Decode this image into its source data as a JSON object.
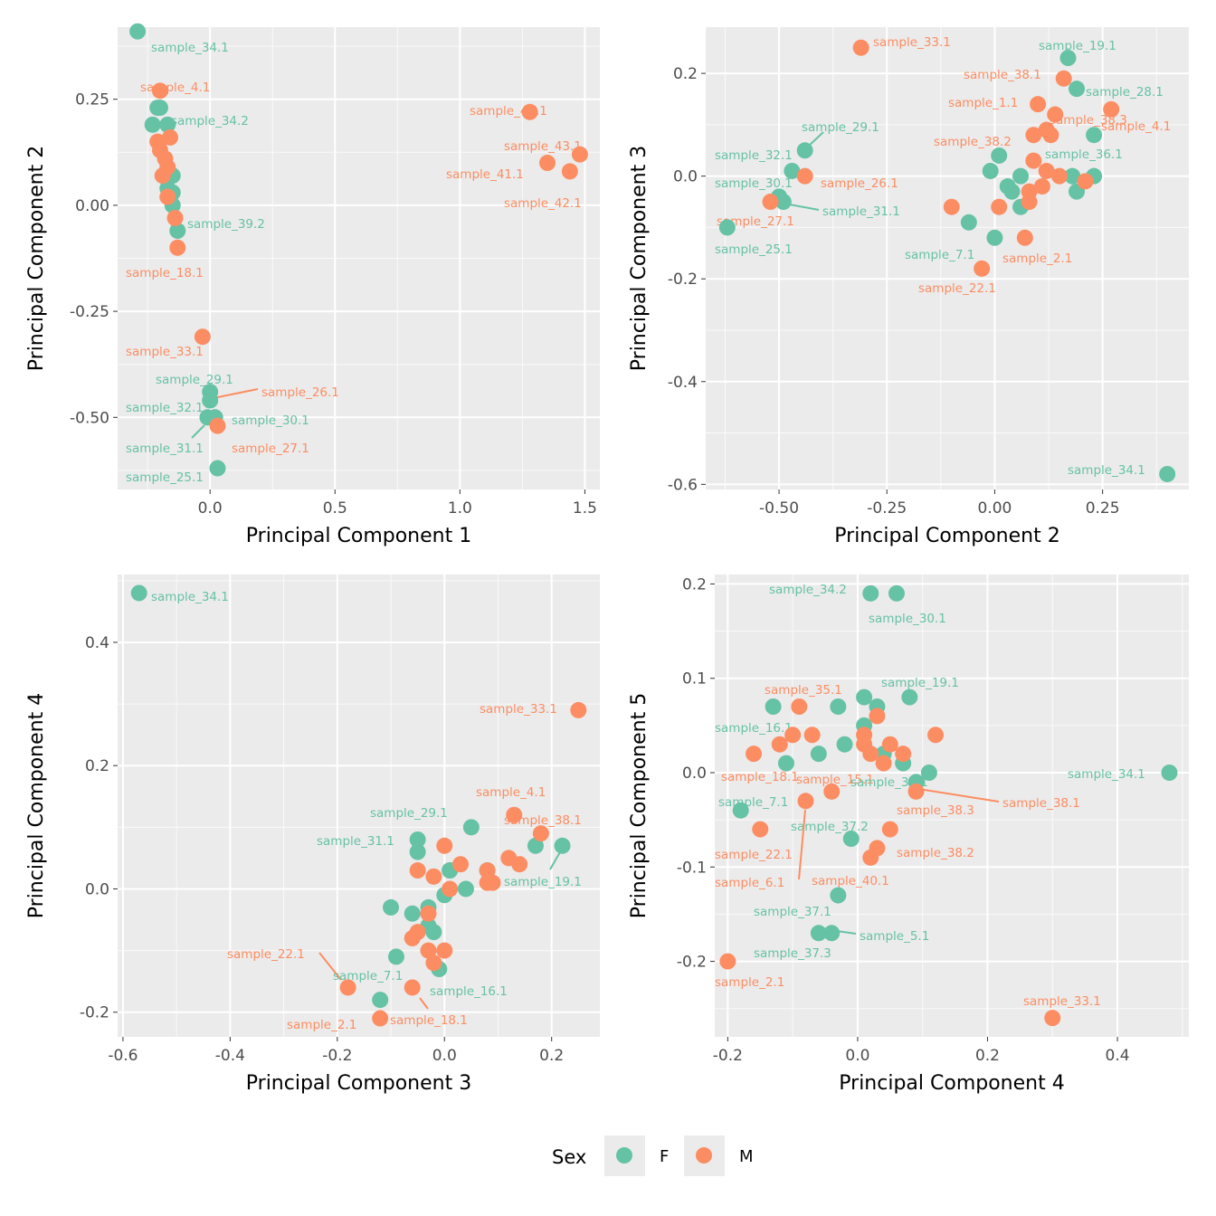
{
  "colors": {
    "F": "#66c2a5",
    "M": "#fc8d62",
    "panel_bg": "#ebebeb",
    "grid": "#ffffff"
  },
  "legend": {
    "title": "Sex",
    "position": "bottom",
    "items": [
      {
        "key": "F",
        "label": "F"
      },
      {
        "key": "M",
        "label": "M"
      }
    ]
  },
  "chart_data": [
    {
      "type": "scatter",
      "xlabel": "Principal Component 1",
      "ylabel": "Principal Component 2",
      "grid": true,
      "xlim": [
        -0.37,
        1.56
      ],
      "ylim": [
        -0.67,
        0.42
      ],
      "xticks": [
        "0.0",
        "0.5",
        "1.0",
        "1.5"
      ],
      "xtick_values": [
        0,
        0.5,
        1,
        1.5
      ],
      "yticks": [
        "-0.50",
        "-0.25",
        "0.00",
        "0.25"
      ],
      "ytick_values": [
        -0.5,
        -0.25,
        0,
        0.25
      ],
      "series": [
        {
          "name": "F",
          "points": [
            [
              -0.29,
              0.41
            ],
            [
              -0.21,
              0.23
            ],
            [
              -0.2,
              0.23
            ],
            [
              -0.23,
              0.19
            ],
            [
              -0.17,
              0.19
            ],
            [
              -0.15,
              0.07
            ],
            [
              -0.17,
              0.04
            ],
            [
              -0.15,
              0.03
            ],
            [
              -0.15,
              0.0
            ],
            [
              -0.13,
              -0.06
            ],
            [
              0.0,
              -0.44
            ],
            [
              0.0,
              -0.46
            ],
            [
              -0.01,
              -0.5
            ],
            [
              0.02,
              -0.5
            ],
            [
              0.03,
              -0.62
            ]
          ]
        },
        {
          "name": "M",
          "points": [
            [
              -0.2,
              0.27
            ],
            [
              -0.16,
              0.16
            ],
            [
              -0.21,
              0.15
            ],
            [
              -0.2,
              0.13
            ],
            [
              -0.18,
              0.11
            ],
            [
              -0.17,
              0.09
            ],
            [
              -0.19,
              0.07
            ],
            [
              -0.17,
              0.02
            ],
            [
              -0.14,
              -0.03
            ],
            [
              -0.13,
              -0.1
            ],
            [
              -0.03,
              -0.31
            ],
            [
              0.03,
              -0.52
            ],
            [
              1.28,
              0.22
            ],
            [
              1.35,
              0.1
            ],
            [
              1.44,
              0.08
            ],
            [
              1.48,
              0.12
            ]
          ]
        }
      ],
      "labels": [
        {
          "text": "sample_34.1",
          "sex": "F"
        },
        {
          "text": "sample_4.1",
          "sex": "M"
        },
        {
          "text": "sample_34.2",
          "sex": "F"
        },
        {
          "text": "sample_39.2",
          "sex": "F"
        },
        {
          "text": "sample_18.1",
          "sex": "M"
        },
        {
          "text": "sample_40.1",
          "sex": "M"
        },
        {
          "text": "sample_43.1",
          "sex": "M"
        },
        {
          "text": "sample_41.1",
          "sex": "M"
        },
        {
          "text": "sample_42.1",
          "sex": "M"
        },
        {
          "text": "sample_33.1",
          "sex": "M"
        },
        {
          "text": "sample_29.1",
          "sex": "F"
        },
        {
          "text": "sample_26.1",
          "sex": "M"
        },
        {
          "text": "sample_32.1",
          "sex": "F"
        },
        {
          "text": "sample_30.1",
          "sex": "F"
        },
        {
          "text": "sample_31.1",
          "sex": "F"
        },
        {
          "text": "sample_27.1",
          "sex": "M"
        },
        {
          "text": "sample_25.1",
          "sex": "F"
        }
      ]
    },
    {
      "type": "scatter",
      "xlabel": "Principal Component 2",
      "ylabel": "Principal Component 3",
      "grid": true,
      "xlim": [
        -0.67,
        0.45
      ],
      "ylim": [
        -0.61,
        0.29
      ],
      "xticks": [
        "-0.50",
        "-0.25",
        "0.00",
        "0.25"
      ],
      "xtick_values": [
        -0.5,
        -0.25,
        0,
        0.25
      ],
      "yticks": [
        "-0.6",
        "-0.4",
        "-0.2",
        "0.0",
        "0.2"
      ],
      "ytick_values": [
        -0.6,
        -0.4,
        -0.2,
        0,
        0.2
      ],
      "series": [
        {
          "name": "F",
          "points": [
            [
              0.17,
              0.23
            ],
            [
              0.19,
              0.17
            ],
            [
              0.23,
              0.08
            ],
            [
              0.01,
              0.04
            ],
            [
              -0.01,
              0.01
            ],
            [
              0.06,
              0.0
            ],
            [
              0.03,
              -0.02
            ],
            [
              0.04,
              -0.03
            ],
            [
              0.06,
              -0.06
            ],
            [
              0.18,
              0.0
            ],
            [
              0.23,
              0.0
            ],
            [
              0.19,
              -0.03
            ],
            [
              -0.06,
              -0.09
            ],
            [
              0.0,
              -0.12
            ],
            [
              -0.44,
              0.05
            ],
            [
              -0.47,
              0.01
            ],
            [
              -0.5,
              -0.04
            ],
            [
              -0.49,
              -0.05
            ],
            [
              -0.62,
              -0.1
            ],
            [
              0.4,
              -0.58
            ]
          ]
        },
        {
          "name": "M",
          "points": [
            [
              -0.31,
              0.25
            ],
            [
              0.16,
              0.19
            ],
            [
              0.1,
              0.14
            ],
            [
              0.14,
              0.12
            ],
            [
              0.27,
              0.13
            ],
            [
              0.09,
              0.08
            ],
            [
              0.12,
              0.09
            ],
            [
              0.13,
              0.08
            ],
            [
              0.09,
              0.03
            ],
            [
              0.12,
              0.01
            ],
            [
              0.15,
              0.0
            ],
            [
              0.21,
              -0.01
            ],
            [
              0.11,
              -0.02
            ],
            [
              0.08,
              -0.03
            ],
            [
              0.08,
              -0.05
            ],
            [
              -0.1,
              -0.06
            ],
            [
              0.01,
              -0.06
            ],
            [
              0.07,
              -0.12
            ],
            [
              -0.03,
              -0.18
            ],
            [
              -0.44,
              0.0
            ],
            [
              -0.52,
              -0.05
            ]
          ]
        }
      ],
      "labels": [
        {
          "text": "sample_33.1",
          "sex": "M"
        },
        {
          "text": "sample_19.1",
          "sex": "F"
        },
        {
          "text": "sample_38.1",
          "sex": "M"
        },
        {
          "text": "sample_28.1",
          "sex": "F"
        },
        {
          "text": "sample_1.1",
          "sex": "M"
        },
        {
          "text": "sample_38.3",
          "sex": "M"
        },
        {
          "text": "sample_4.1",
          "sex": "M"
        },
        {
          "text": "sample_38.2",
          "sex": "M"
        },
        {
          "text": "sample_36.1",
          "sex": "F"
        },
        {
          "text": "sample_29.1",
          "sex": "F"
        },
        {
          "text": "sample_32.1",
          "sex": "F"
        },
        {
          "text": "sample_26.1",
          "sex": "M"
        },
        {
          "text": "sample_30.1",
          "sex": "F"
        },
        {
          "text": "sample_31.1",
          "sex": "F"
        },
        {
          "text": "sample_27.1",
          "sex": "M"
        },
        {
          "text": "sample_25.1",
          "sex": "F"
        },
        {
          "text": "sample_7.1",
          "sex": "F"
        },
        {
          "text": "sample_2.1",
          "sex": "M"
        },
        {
          "text": "sample_22.1",
          "sex": "M"
        },
        {
          "text": "sample_34.1",
          "sex": "F"
        }
      ]
    },
    {
      "type": "scatter",
      "xlabel": "Principal Component 3",
      "ylabel": "Principal Component 4",
      "grid": true,
      "xlim": [
        -0.61,
        0.29
      ],
      "ylim": [
        -0.24,
        0.51
      ],
      "xticks": [
        "-0.6",
        "-0.4",
        "-0.2",
        "0.0",
        "0.2"
      ],
      "xtick_values": [
        -0.6,
        -0.4,
        -0.2,
        0,
        0.2
      ],
      "yticks": [
        "-0.2",
        "0.0",
        "0.2",
        "0.4"
      ],
      "ytick_values": [
        -0.2,
        0,
        0.2,
        0.4
      ],
      "series": [
        {
          "name": "F",
          "points": [
            [
              -0.57,
              0.48
            ],
            [
              0.05,
              0.1
            ],
            [
              -0.05,
              0.08
            ],
            [
              -0.05,
              0.06
            ],
            [
              0.01,
              0.03
            ],
            [
              0.17,
              0.07
            ],
            [
              0.22,
              0.07
            ],
            [
              0.04,
              0.0
            ],
            [
              0.0,
              -0.01
            ],
            [
              -0.1,
              -0.03
            ],
            [
              -0.06,
              -0.04
            ],
            [
              -0.03,
              -0.03
            ],
            [
              -0.03,
              -0.06
            ],
            [
              -0.02,
              -0.07
            ],
            [
              -0.09,
              -0.11
            ],
            [
              -0.01,
              -0.13
            ],
            [
              -0.12,
              -0.18
            ],
            [
              0.01,
              0.03
            ],
            [
              0.08,
              0.03
            ]
          ]
        },
        {
          "name": "M",
          "points": [
            [
              0.25,
              0.29
            ],
            [
              0.13,
              0.12
            ],
            [
              0.18,
              0.09
            ],
            [
              0.0,
              0.07
            ],
            [
              0.03,
              0.04
            ],
            [
              0.12,
              0.05
            ],
            [
              0.14,
              0.04
            ],
            [
              0.08,
              0.03
            ],
            [
              0.08,
              0.01
            ],
            [
              0.09,
              0.01
            ],
            [
              -0.05,
              0.03
            ],
            [
              -0.02,
              0.02
            ],
            [
              0.01,
              0.0
            ],
            [
              -0.03,
              -0.04
            ],
            [
              -0.05,
              -0.07
            ],
            [
              -0.06,
              -0.08
            ],
            [
              0.0,
              -0.1
            ],
            [
              -0.03,
              -0.1
            ],
            [
              -0.02,
              -0.12
            ],
            [
              -0.06,
              -0.16
            ],
            [
              -0.18,
              -0.16
            ],
            [
              -0.12,
              -0.21
            ]
          ]
        }
      ],
      "labels": [
        {
          "text": "sample_34.1",
          "sex": "F"
        },
        {
          "text": "sample_33.1",
          "sex": "M"
        },
        {
          "text": "sample_4.1",
          "sex": "M"
        },
        {
          "text": "sample_38.1",
          "sex": "M"
        },
        {
          "text": "sample_29.1",
          "sex": "F"
        },
        {
          "text": "sample_31.1",
          "sex": "F"
        },
        {
          "text": "sample_19.1",
          "sex": "F"
        },
        {
          "text": "sample_22.1",
          "sex": "M"
        },
        {
          "text": "sample_7.1",
          "sex": "F"
        },
        {
          "text": "sample_16.1",
          "sex": "F"
        },
        {
          "text": "sample_2.1",
          "sex": "M"
        },
        {
          "text": "sample_18.1",
          "sex": "M"
        }
      ]
    },
    {
      "type": "scatter",
      "xlabel": "Principal Component 4",
      "ylabel": "Principal Component 5",
      "grid": true,
      "xlim": [
        -0.22,
        0.51
      ],
      "ylim": [
        -0.28,
        0.21
      ],
      "xticks": [
        "-0.2",
        "0.0",
        "0.2",
        "0.4"
      ],
      "xtick_values": [
        -0.2,
        0,
        0.2,
        0.4
      ],
      "yticks": [
        "-0.2",
        "-0.1",
        "0.0",
        "0.1",
        "0.2"
      ],
      "ytick_values": [
        -0.2,
        -0.1,
        0,
        0.1,
        0.2
      ],
      "series": [
        {
          "name": "F",
          "points": [
            [
              0.02,
              0.19
            ],
            [
              0.06,
              0.19
            ],
            [
              -0.13,
              0.07
            ],
            [
              -0.03,
              0.07
            ],
            [
              0.01,
              0.08
            ],
            [
              0.03,
              0.07
            ],
            [
              0.08,
              0.08
            ],
            [
              0.01,
              0.05
            ],
            [
              -0.02,
              0.03
            ],
            [
              -0.06,
              0.02
            ],
            [
              -0.11,
              0.01
            ],
            [
              0.04,
              0.02
            ],
            [
              0.07,
              0.01
            ],
            [
              0.11,
              0.0
            ],
            [
              0.09,
              -0.01
            ],
            [
              0.48,
              0.0
            ],
            [
              -0.18,
              -0.04
            ],
            [
              -0.01,
              -0.07
            ],
            [
              -0.03,
              -0.13
            ],
            [
              -0.06,
              -0.17
            ],
            [
              -0.04,
              -0.17
            ]
          ]
        },
        {
          "name": "M",
          "points": [
            [
              -0.09,
              0.07
            ],
            [
              0.03,
              0.06
            ],
            [
              -0.07,
              0.04
            ],
            [
              -0.1,
              0.04
            ],
            [
              -0.12,
              0.03
            ],
            [
              -0.16,
              0.02
            ],
            [
              0.01,
              0.04
            ],
            [
              0.05,
              0.03
            ],
            [
              0.01,
              0.03
            ],
            [
              0.02,
              0.02
            ],
            [
              0.07,
              0.02
            ],
            [
              0.04,
              0.01
            ],
            [
              0.12,
              0.04
            ],
            [
              0.09,
              -0.02
            ],
            [
              -0.04,
              -0.02
            ],
            [
              -0.08,
              -0.03
            ],
            [
              -0.15,
              -0.06
            ],
            [
              0.05,
              -0.06
            ],
            [
              0.03,
              -0.08
            ],
            [
              0.02,
              -0.09
            ],
            [
              -0.2,
              -0.2
            ],
            [
              0.3,
              -0.26
            ]
          ]
        }
      ],
      "labels": [
        {
          "text": "sample_34.2",
          "sex": "F"
        },
        {
          "text": "sample_30.1",
          "sex": "F"
        },
        {
          "text": "sample_19.1",
          "sex": "F"
        },
        {
          "text": "sample_35.1",
          "sex": "M"
        },
        {
          "text": "sample_16.1",
          "sex": "F"
        },
        {
          "text": "sample_18.1",
          "sex": "M"
        },
        {
          "text": "sample_15.1",
          "sex": "M"
        },
        {
          "text": "sample_31.1",
          "sex": "F"
        },
        {
          "text": "sample_34.1",
          "sex": "F"
        },
        {
          "text": "sample_7.1",
          "sex": "F"
        },
        {
          "text": "sample_38.3",
          "sex": "M"
        },
        {
          "text": "sample_38.1",
          "sex": "M"
        },
        {
          "text": "sample_37.2",
          "sex": "F"
        },
        {
          "text": "sample_22.1",
          "sex": "M"
        },
        {
          "text": "sample_38.2",
          "sex": "M"
        },
        {
          "text": "sample_6.1",
          "sex": "M"
        },
        {
          "text": "sample_40.1",
          "sex": "M"
        },
        {
          "text": "sample_37.1",
          "sex": "F"
        },
        {
          "text": "sample_5.1",
          "sex": "F"
        },
        {
          "text": "sample_37.3",
          "sex": "F"
        },
        {
          "text": "sample_2.1",
          "sex": "M"
        },
        {
          "text": "sample_33.1",
          "sex": "M"
        }
      ]
    }
  ]
}
